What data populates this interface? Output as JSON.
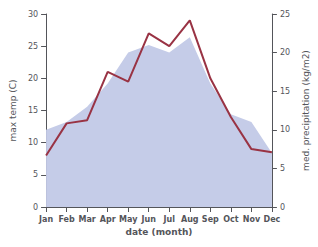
{
  "chart_data": {
    "type": "line",
    "categories": [
      "Jan",
      "Feb",
      "Mar",
      "Apr",
      "May",
      "Jun",
      "Jul",
      "Aug",
      "Sep",
      "Oct",
      "Nov",
      "Dec"
    ],
    "xlabel": "date (month)",
    "ylabel": "max temp (C)",
    "y2label": "med. precipitation (kg/m2)",
    "ylim": [
      0,
      30
    ],
    "yticks": [
      0,
      5,
      10,
      15,
      20,
      25,
      30
    ],
    "y2lim": [
      0,
      25
    ],
    "y2ticks": [
      0,
      5,
      10,
      15,
      20,
      25
    ],
    "grid": false,
    "series": [
      {
        "type": "area",
        "axis": "y2",
        "color": "#c5cce8",
        "values": [
          10,
          11,
          13,
          16,
          20,
          21,
          20,
          22,
          16,
          12,
          11,
          7
        ]
      },
      {
        "type": "line",
        "color": "#993344",
        "values": [
          8.0,
          13.0,
          13.5,
          21.0,
          19.5,
          27.0,
          25.0,
          29.0,
          20.0,
          14.0,
          9.0,
          8.5
        ]
      }
    ]
  }
}
